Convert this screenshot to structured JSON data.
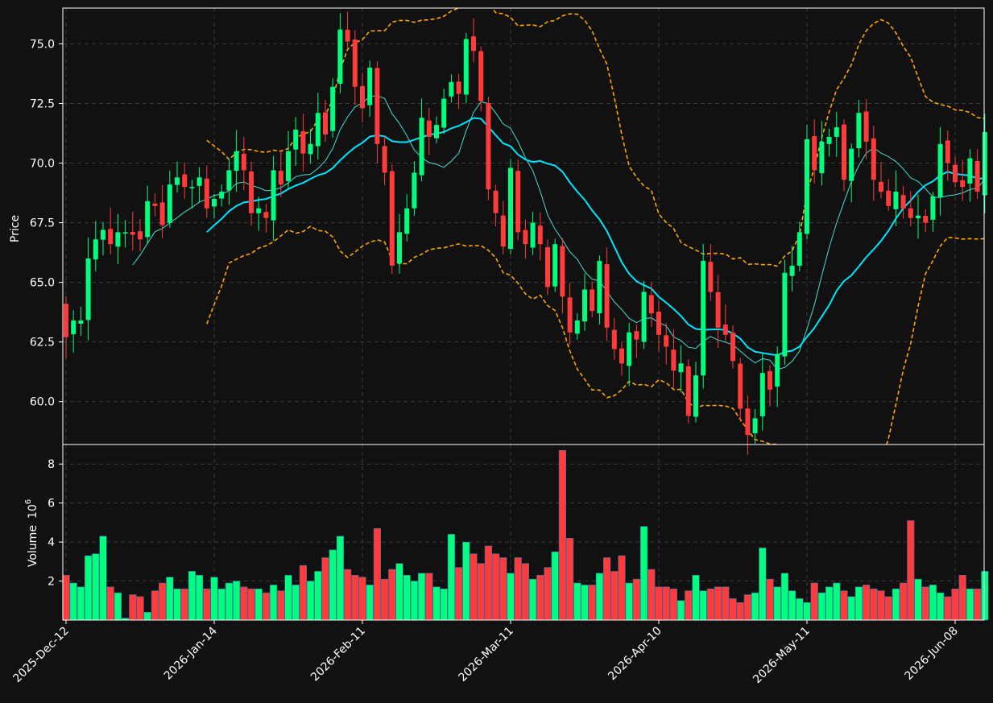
{
  "chart_data": {
    "type": "candlestick",
    "colors": {
      "background": "#111111",
      "up": "#00ff7f",
      "down": "#ff3b3b",
      "sma_fast": "#40e0d0",
      "sma_slow": "#00e5ff",
      "bollinger": "#ffa500",
      "grid": "#3a3a3a",
      "text": "#ffffff"
    },
    "price_panel": {
      "ylabel": "Price",
      "ylim": [
        58.2,
        76.5
      ],
      "yticks": [
        60.0,
        62.5,
        65.0,
        67.5,
        70.0,
        72.5,
        75.0
      ],
      "ytick_labels": [
        "60.0",
        "62.5",
        "65.0",
        "67.5",
        "70.0",
        "72.5",
        "75.0"
      ]
    },
    "volume_panel": {
      "ylabel": "Volume",
      "ylabel_exponent": "10",
      "ylabel_power": "6",
      "ylim": [
        0,
        9.0
      ],
      "yticks": [
        2,
        4,
        6,
        8
      ],
      "ytick_labels": [
        "2",
        "4",
        "6",
        "8"
      ]
    },
    "x_axis": {
      "ticks": [
        {
          "index": 0,
          "label": "2025-Dec-12"
        },
        {
          "index": 20,
          "label": "2026-Jan-14"
        },
        {
          "index": 40,
          "label": "2026-Feb-11"
        },
        {
          "index": 60,
          "label": "2026-Mar-11"
        },
        {
          "index": 80,
          "label": "2026-Apr-10"
        },
        {
          "index": 100,
          "label": "2026-May-11"
        },
        {
          "index": 120,
          "label": "2026-Jun-08"
        }
      ],
      "n_bars": 125
    },
    "close_values": [
      62.7,
      63.4,
      63.4,
      66.0,
      66.8,
      67.2,
      66.6,
      67.1,
      67.1,
      67.0,
      66.8,
      68.4,
      68.2,
      67.4,
      69.1,
      69.4,
      69.0,
      69.0,
      69.4,
      68.1,
      68.5,
      68.8,
      69.7,
      70.5,
      69.7,
      67.9,
      68.1,
      67.7,
      69.7,
      69.1,
      70.5,
      71.4,
      70.4,
      70.8,
      72.1,
      71.2,
      73.2,
      75.6,
      75.1,
      73.2,
      72.3,
      74.0,
      70.8,
      69.6,
      65.7,
      67.1,
      68.1,
      69.6,
      71.9,
      71.1,
      71.6,
      72.7,
      73.4,
      72.9,
      75.2,
      74.7,
      72.6,
      68.9,
      67.9,
      66.5,
      69.8,
      67.1,
      66.6,
      67.5,
      66.6,
      64.8,
      66.6,
      64.4,
      62.9,
      63.4,
      64.7,
      63.8,
      65.9,
      63.1,
      62.2,
      61.6,
      62.9,
      62.6,
      64.6,
      63.7,
      62.8,
      62.3,
      61.3,
      61.6,
      59.4,
      61.1,
      65.9,
      64.6,
      63.1,
      62.8,
      61.7,
      59.7,
      58.6,
      59.3,
      61.2,
      60.5,
      62.0,
      65.4,
      65.7,
      67.1,
      71.0,
      69.7,
      70.9,
      71.1,
      71.5,
      69.3,
      70.6,
      72.1,
      70.9,
      69.3,
      68.8,
      68.2,
      68.8,
      68.1,
      67.7,
      67.8,
      67.5,
      68.6,
      70.8,
      70.0,
      69.2,
      69.0,
      70.2,
      68.8,
      71.3
    ],
    "volume_values": [
      2.3,
      1.9,
      1.7,
      3.3,
      3.4,
      4.3,
      1.7,
      1.4,
      0.1,
      1.3,
      1.2,
      0.4,
      1.5,
      1.9,
      2.2,
      1.6,
      1.6,
      2.5,
      2.3,
      1.6,
      2.2,
      1.6,
      1.9,
      2.0,
      1.7,
      1.6,
      1.6,
      1.4,
      1.8,
      1.5,
      2.3,
      1.8,
      2.8,
      2.0,
      2.5,
      3.2,
      3.6,
      4.3,
      2.6,
      2.3,
      2.2,
      1.8,
      4.7,
      2.1,
      2.6,
      2.9,
      2.3,
      2.0,
      2.4,
      2.4,
      1.7,
      1.6,
      4.4,
      2.7,
      4.0,
      3.4,
      2.9,
      3.8,
      3.4,
      3.2,
      2.4,
      3.2,
      2.9,
      2.1,
      2.3,
      2.7,
      3.5,
      8.7,
      4.2,
      1.9,
      1.8,
      1.8,
      2.4,
      3.2,
      2.5,
      3.3,
      1.9,
      2.1,
      4.8,
      2.6,
      1.7,
      1.7,
      1.6,
      1.0,
      1.5,
      2.3,
      1.5,
      1.6,
      1.7,
      1.7,
      1.1,
      0.9,
      1.3,
      1.4,
      3.7,
      2.1,
      1.7,
      2.4,
      1.5,
      1.1,
      0.9,
      1.9,
      1.4,
      1.7,
      1.9,
      1.5,
      1.2,
      1.7,
      1.8,
      1.6,
      1.5,
      1.2,
      1.6,
      1.9,
      5.1,
      2.1,
      1.7,
      1.8,
      1.4,
      1.2,
      1.6,
      2.3,
      1.6,
      1.6,
      2.5
    ]
  }
}
